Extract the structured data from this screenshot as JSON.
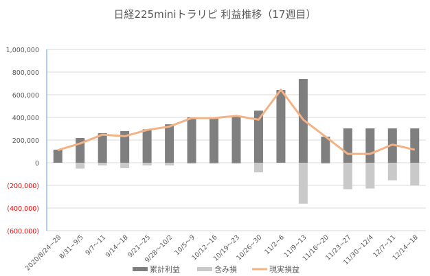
{
  "chart_data": {
    "type": "bar+line",
    "title": "日経225miniトラリピ 利益推移（17週目）",
    "categories": [
      "2020/8/24~28",
      "8/31~9/5",
      "9/7～11",
      "9/14~18",
      "9/21~25",
      "9/28～10/2",
      "10/5～9",
      "10/12~16",
      "10/19～23",
      "10/26~30",
      "11/2~6",
      "11/9~13",
      "11/16～20",
      "11/23~27",
      "11/30~12/4",
      "12/7~11",
      "12/14~18"
    ],
    "series": [
      {
        "name": "累計利益",
        "type": "bar",
        "color": "#7f7f7f",
        "values": [
          115000,
          218000,
          261000,
          279000,
          295000,
          339000,
          400000,
          392000,
          405000,
          460000,
          642000,
          739000,
          230000,
          303000,
          303000,
          303000,
          303000
        ]
      },
      {
        "name": "含み損",
        "type": "bar",
        "color": "#c9c9c9",
        "values": [
          0,
          -52000,
          -24000,
          -48000,
          -24000,
          -24000,
          -10000,
          -10000,
          -10000,
          -85000,
          0,
          -362000,
          -10000,
          -234000,
          -228000,
          -155000,
          -200000
        ]
      },
      {
        "name": "現実損益",
        "type": "line",
        "color": "#f4b183",
        "values": [
          111000,
          170000,
          248000,
          234000,
          289000,
          319000,
          394000,
          394000,
          414000,
          380000,
          644000,
          380000,
          230000,
          78000,
          78000,
          160000,
          115000
        ]
      }
    ],
    "ylim": [
      -600000,
      1000000
    ],
    "yticks": [
      "1,000,000",
      "800,000",
      "600,000",
      "400,000",
      "200,000",
      "0",
      "(200,000)",
      "(400,000)",
      "(600,000)"
    ],
    "ytick_values": [
      1000000,
      800000,
      600000,
      400000,
      200000,
      0,
      -200000,
      -400000,
      -600000
    ],
    "negative_tick_color": "#ff0000",
    "grid": true,
    "legend": "bottom"
  }
}
